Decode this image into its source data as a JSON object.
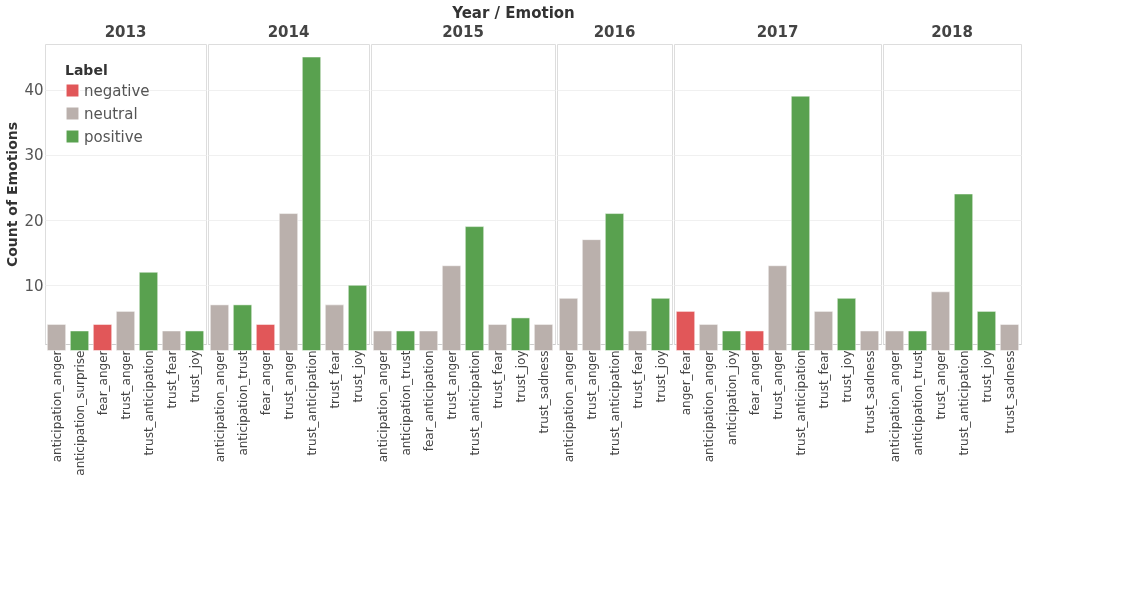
{
  "chart_data": [
    {
      "type": "bar",
      "title": "2013",
      "ylabel": "Count of Emotions",
      "legend_title": "Label",
      "legend": "top left",
      "annotations": [
        "Year / Emotion"
      ],
      "stacked": true,
      "grid": "y",
      "ylim": [
        1,
        47
      ],
      "yticks": [
        10,
        20,
        30,
        40
      ],
      "categories": [
        "anticipation_anger",
        "anticipation_surprise",
        "fear_anger",
        "trust_anger",
        "trust_anticipation",
        "trust_fear",
        "trust_joy"
      ],
      "series": [
        {
          "name": "negative",
          "color": "#e15759",
          "values": [
            null,
            null,
            4,
            null,
            null,
            null,
            null
          ]
        },
        {
          "name": "neutral",
          "color": "#bab0ac",
          "values": [
            4,
            null,
            null,
            6,
            null,
            3,
            null
          ]
        },
        {
          "name": "positive",
          "color": "#59a14f",
          "values": [
            null,
            3,
            null,
            null,
            12,
            null,
            3
          ]
        }
      ]
    },
    {
      "type": "bar",
      "title": "2014",
      "stacked": true,
      "grid": "y",
      "tick_labels": "x",
      "ylim": [
        1,
        47
      ],
      "yticks": [
        10,
        20,
        30,
        40
      ],
      "categories": [
        "anticipation_anger",
        "anticipation_trust",
        "fear_anger",
        "trust_anger",
        "trust_anticipation",
        "trust_fear",
        "trust_joy"
      ],
      "series": [
        {
          "color": "#e15759",
          "values": [
            null,
            null,
            4,
            null,
            null,
            null,
            null
          ]
        },
        {
          "color": "#bab0ac",
          "values": [
            7,
            null,
            null,
            21,
            null,
            7,
            null
          ]
        },
        {
          "color": "#59a14f",
          "values": [
            null,
            7,
            null,
            null,
            45,
            null,
            10
          ]
        }
      ]
    },
    {
      "type": "bar",
      "title": "2015",
      "stacked": true,
      "grid": "y",
      "tick_labels": "x",
      "ylim": [
        1,
        47
      ],
      "yticks": [
        10,
        20,
        30,
        40
      ],
      "categories": [
        "anticipation_anger",
        "anticipation_trust",
        "fear_anticipation",
        "trust_anger",
        "trust_anticipation",
        "trust_fear",
        "trust_joy",
        "trust_sadness"
      ],
      "series": [
        {
          "color": "#bab0ac",
          "values": [
            3,
            null,
            3,
            13,
            null,
            4,
            null,
            4
          ]
        },
        {
          "color": "#59a14f",
          "values": [
            null,
            3,
            null,
            null,
            19,
            null,
            5,
            null
          ]
        }
      ]
    },
    {
      "type": "bar",
      "title": "2016",
      "stacked": true,
      "grid": "y",
      "tick_labels": "x",
      "ylim": [
        1,
        47
      ],
      "yticks": [
        10,
        20,
        30,
        40
      ],
      "categories": [
        "anticipation_anger",
        "trust_anger",
        "trust_anticipation",
        "trust_fear",
        "trust_joy"
      ],
      "series": [
        {
          "color": "#bab0ac",
          "values": [
            8,
            17,
            null,
            3,
            null
          ]
        },
        {
          "color": "#59a14f",
          "values": [
            null,
            null,
            21,
            null,
            8
          ]
        }
      ]
    },
    {
      "type": "bar",
      "title": "2017",
      "stacked": true,
      "grid": "y",
      "tick_labels": "x",
      "ylim": [
        1,
        47
      ],
      "yticks": [
        10,
        20,
        30,
        40
      ],
      "categories": [
        "anger_fear",
        "anticipation_anger",
        "anticipation_joy",
        "fear_anger",
        "trust_anger",
        "trust_anticipation",
        "trust_fear",
        "trust_joy",
        "trust_sadness"
      ],
      "series": [
        {
          "color": "#e15759",
          "values": [
            6,
            null,
            null,
            3,
            null,
            null,
            null,
            null,
            null
          ]
        },
        {
          "color": "#bab0ac",
          "values": [
            null,
            4,
            null,
            null,
            13,
            null,
            6,
            null,
            3
          ]
        },
        {
          "color": "#59a14f",
          "values": [
            null,
            null,
            3,
            null,
            null,
            39,
            null,
            8,
            null
          ]
        }
      ]
    },
    {
      "type": "bar",
      "title": "2018",
      "stacked": true,
      "grid": "y",
      "tick_labels": "x",
      "ylim": [
        1,
        47
      ],
      "yticks": [
        10,
        20,
        30,
        40
      ],
      "categories": [
        "anticipation_anger",
        "anticipation_trust",
        "trust_anger",
        "trust_anticipation",
        "trust_joy",
        "trust_sadness"
      ],
      "series": [
        {
          "color": "#bab0ac",
          "values": [
            3,
            null,
            9,
            null,
            null,
            4
          ]
        },
        {
          "color": "#59a14f",
          "values": [
            null,
            3,
            null,
            24,
            6,
            null
          ]
        }
      ]
    }
  ]
}
